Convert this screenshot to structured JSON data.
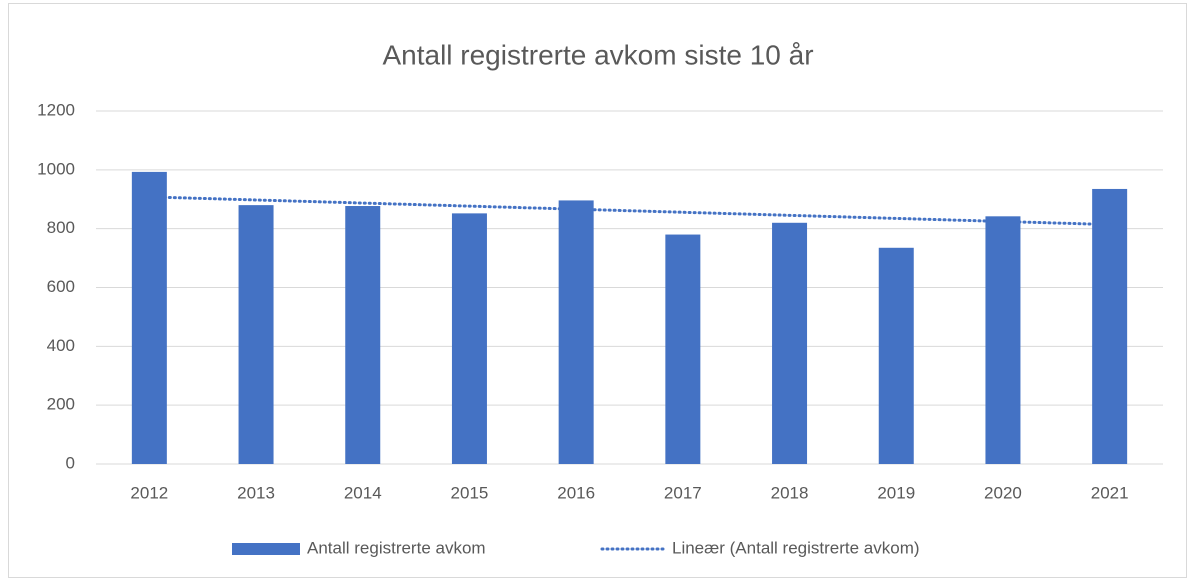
{
  "chart_data": {
    "type": "bar",
    "title": "Antall registrerte avkom siste 10 år",
    "categories": [
      "2012",
      "2013",
      "2014",
      "2015",
      "2016",
      "2017",
      "2018",
      "2019",
      "2020",
      "2021"
    ],
    "series": [
      {
        "name": "Antall registrerte avkom",
        "color": "#4472c4",
        "values": [
          993,
          880,
          877,
          852,
          896,
          780,
          820,
          735,
          842,
          935
        ]
      }
    ],
    "trendline": {
      "name": "Lineær (Antall registrerte avkom)",
      "color": "#4472c4",
      "start": 908,
      "end": 814
    },
    "ylim": [
      0,
      1200
    ],
    "yticks": [
      0,
      200,
      400,
      600,
      800,
      1000,
      1200
    ],
    "grid": true,
    "legend": "bottom"
  }
}
